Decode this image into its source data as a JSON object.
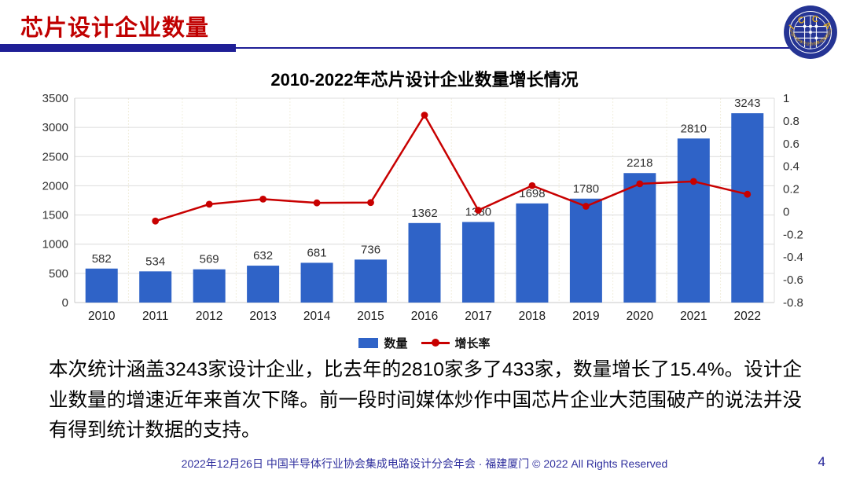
{
  "theme": {
    "title_red": "#c00000",
    "navy": "#1f1f96",
    "footer_blue": "#32329f",
    "bar_blue": "#2f63c7",
    "line_red": "#c80000",
    "grid_h": "#dcdcdc",
    "grid_v": "#f1eedd",
    "axis": "#c9c9c9",
    "logo_navy": "#253494",
    "logo_gold": "#d9a520"
  },
  "header": {
    "title": "芯片设计企业数量"
  },
  "logo": {
    "arc_top": "I C C A D",
    "arc_bottom": "中国半导体行业协会集成电路设计分会"
  },
  "chart_data": {
    "type": "bar",
    "title": "2010-2022年芯片设计企业数量增长情况",
    "categories": [
      "2010",
      "2011",
      "2012",
      "2013",
      "2014",
      "2015",
      "2016",
      "2017",
      "2018",
      "2019",
      "2020",
      "2021",
      "2022"
    ],
    "series": [
      {
        "name": "数量",
        "type": "bar",
        "axis": "left",
        "color": "#2f63c7",
        "values": [
          582,
          534,
          569,
          632,
          681,
          736,
          1362,
          1380,
          1698,
          1780,
          2218,
          2810,
          3243
        ]
      },
      {
        "name": "增长率",
        "type": "line",
        "axis": "right",
        "color": "#c80000",
        "values": [
          null,
          -0.082,
          0.066,
          0.111,
          0.078,
          0.081,
          0.851,
          0.013,
          0.23,
          0.048,
          0.246,
          0.267,
          0.154
        ]
      }
    ],
    "left_axis": {
      "min": 0,
      "max": 3500,
      "ticks": [
        "0",
        "500",
        "1000",
        "1500",
        "2000",
        "2500",
        "3000",
        "3500"
      ]
    },
    "right_axis": {
      "min": -0.8,
      "max": 1,
      "ticks": [
        "1",
        "0.8",
        "0.6",
        "0.4",
        "0.2",
        "0",
        "-0.2",
        "-0.4",
        "-0.6",
        "-0.8"
      ]
    },
    "legend_position": "bottom",
    "grid": true,
    "bar_data_labels": [
      "582",
      "534",
      "569",
      "632",
      "681",
      "736",
      "1362",
      "1380",
      "1698",
      "1780",
      "2218",
      "2810",
      "3243"
    ]
  },
  "body": {
    "text": "本次统计涵盖3243家设计企业，比去年的2810家多了433家，数量增长了15.4%。设计企业数量的增速近年来首次下降。前一段时间媒体炒作中国芯片企业大范围破产的说法并没有得到统计数据的支持。"
  },
  "footer": {
    "text": "2022年12月26日 中国半导体行业协会集成电路设计分会年会 · 福建厦门 © 2022 All Rights Reserved",
    "page": "4"
  }
}
